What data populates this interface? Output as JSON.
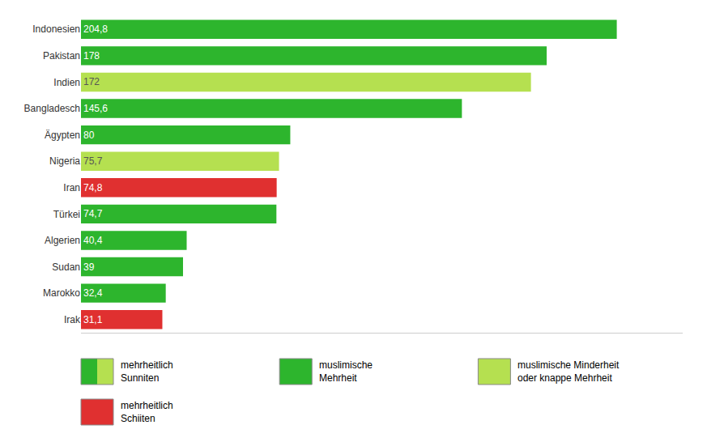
{
  "chart_data": {
    "type": "bar",
    "orientation": "horizontal",
    "categories": [
      "Indonesien",
      "Pakistan",
      "Indien",
      "Bangladesch",
      "Ägypten",
      "Nigeria",
      "Iran",
      "Türkei",
      "Algerien",
      "Sudan",
      "Marokko",
      "Irak"
    ],
    "values": [
      204.8,
      178,
      172,
      145.6,
      80,
      75.7,
      74.8,
      74.7,
      40.4,
      39,
      32.4,
      31.1
    ],
    "value_labels": [
      "204,8",
      "178",
      "172",
      "145,6",
      "80",
      "75,7",
      "74,8",
      "74,7",
      "40,4",
      "39",
      "32,4",
      "31,1"
    ],
    "colors": [
      "#2db52d",
      "#2db52d",
      "#b5e050",
      "#2db52d",
      "#2db52d",
      "#b5e050",
      "#e03030",
      "#2db52d",
      "#2db52d",
      "#2db52d",
      "#2db52d",
      "#e03030"
    ],
    "xlim": [
      0,
      230
    ],
    "data_labels": true,
    "tick_labels": "y",
    "grid": false,
    "annotations": [
      {
        "text": "mehrheitlich\nSunniten",
        "colors": [
          "#2db52d",
          "#b5e050"
        ]
      },
      {
        "text": "muslimische\nMehrheit",
        "colors": [
          "#2db52d"
        ]
      },
      {
        "text": "muslimische Minderheit\noder knappe Mehrheit",
        "colors": [
          "#b5e050"
        ]
      },
      {
        "text": "mehrheitlich\nSchiiten",
        "colors": [
          "#e03030"
        ]
      }
    ]
  }
}
